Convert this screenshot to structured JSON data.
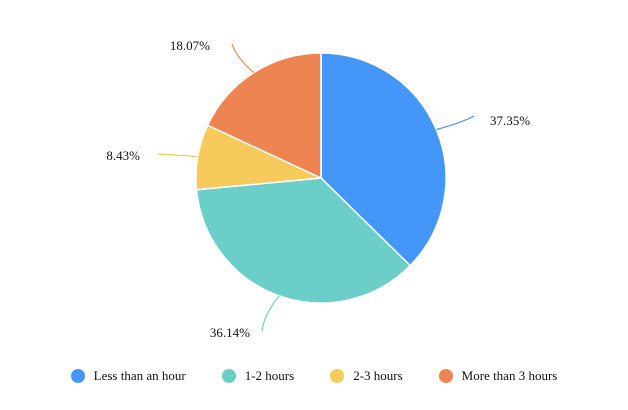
{
  "chart_data": {
    "type": "pie",
    "categories": [
      "Less than an hour",
      "1-2 hours",
      "2-3 hours",
      "More than 3 hours"
    ],
    "values": [
      37.35,
      36.14,
      8.43,
      18.07
    ],
    "labels": [
      "37.35%",
      "36.14%",
      "8.43%",
      "18.07%"
    ],
    "colors": [
      "#4496F8",
      "#6BCEC8",
      "#F6CA5B",
      "#EE8452"
    ],
    "start_angle": "12 o'clock",
    "direction": "clockwise",
    "legend_position": "bottom"
  }
}
